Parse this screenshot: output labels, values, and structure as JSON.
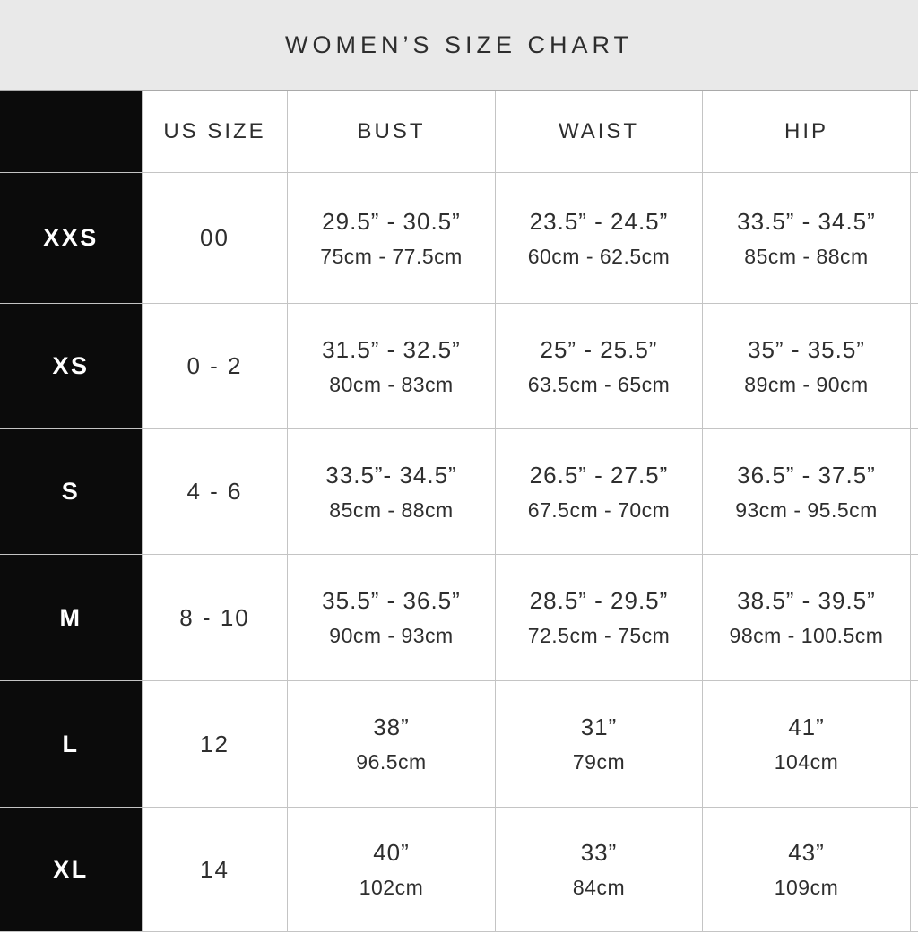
{
  "title": "WOMEN’S SIZE CHART",
  "colors": {
    "band_bg": "#e9e9e9",
    "band_border": "#a9a9a9",
    "black_cell_bg": "#0b0b0b",
    "cell_border": "#c4c4c4",
    "text": "#2e2e2e",
    "black_cell_text": "#ffffff"
  },
  "chart_data": {
    "type": "table",
    "title": "WOMEN’S SIZE CHART",
    "columns": [
      "US SIZE",
      "BUST",
      "WAIST",
      "HIP"
    ],
    "rows": [
      {
        "size": "XXS",
        "us_size": "00",
        "bust_in": "29.5” - 30.5”",
        "bust_cm": "75cm - 77.5cm",
        "waist_in": "23.5” - 24.5”",
        "waist_cm": "60cm - 62.5cm",
        "hip_in": "33.5” - 34.5”",
        "hip_cm": "85cm - 88cm"
      },
      {
        "size": "XS",
        "us_size": "0 - 2",
        "bust_in": "31.5” - 32.5”",
        "bust_cm": "80cm - 83cm",
        "waist_in": "25” - 25.5”",
        "waist_cm": "63.5cm - 65cm",
        "hip_in": "35” - 35.5”",
        "hip_cm": "89cm - 90cm"
      },
      {
        "size": "S",
        "us_size": "4 - 6",
        "bust_in": "33.5”- 34.5”",
        "bust_cm": "85cm - 88cm",
        "waist_in": "26.5” - 27.5”",
        "waist_cm": "67.5cm - 70cm",
        "hip_in": "36.5” - 37.5”",
        "hip_cm": "93cm - 95.5cm"
      },
      {
        "size": "M",
        "us_size": "8 - 10",
        "bust_in": "35.5” - 36.5”",
        "bust_cm": "90cm - 93cm",
        "waist_in": "28.5” - 29.5”",
        "waist_cm": "72.5cm - 75cm",
        "hip_in": "38.5” - 39.5”",
        "hip_cm": "98cm - 100.5cm"
      },
      {
        "size": "L",
        "us_size": "12",
        "bust_in": "38”",
        "bust_cm": "96.5cm",
        "waist_in": "31”",
        "waist_cm": "79cm",
        "hip_in": "41”",
        "hip_cm": "104cm"
      },
      {
        "size": "XL",
        "us_size": "14",
        "bust_in": "40”",
        "bust_cm": "102cm",
        "waist_in": "33”",
        "waist_cm": "84cm",
        "hip_in": "43”",
        "hip_cm": "109cm"
      }
    ]
  }
}
